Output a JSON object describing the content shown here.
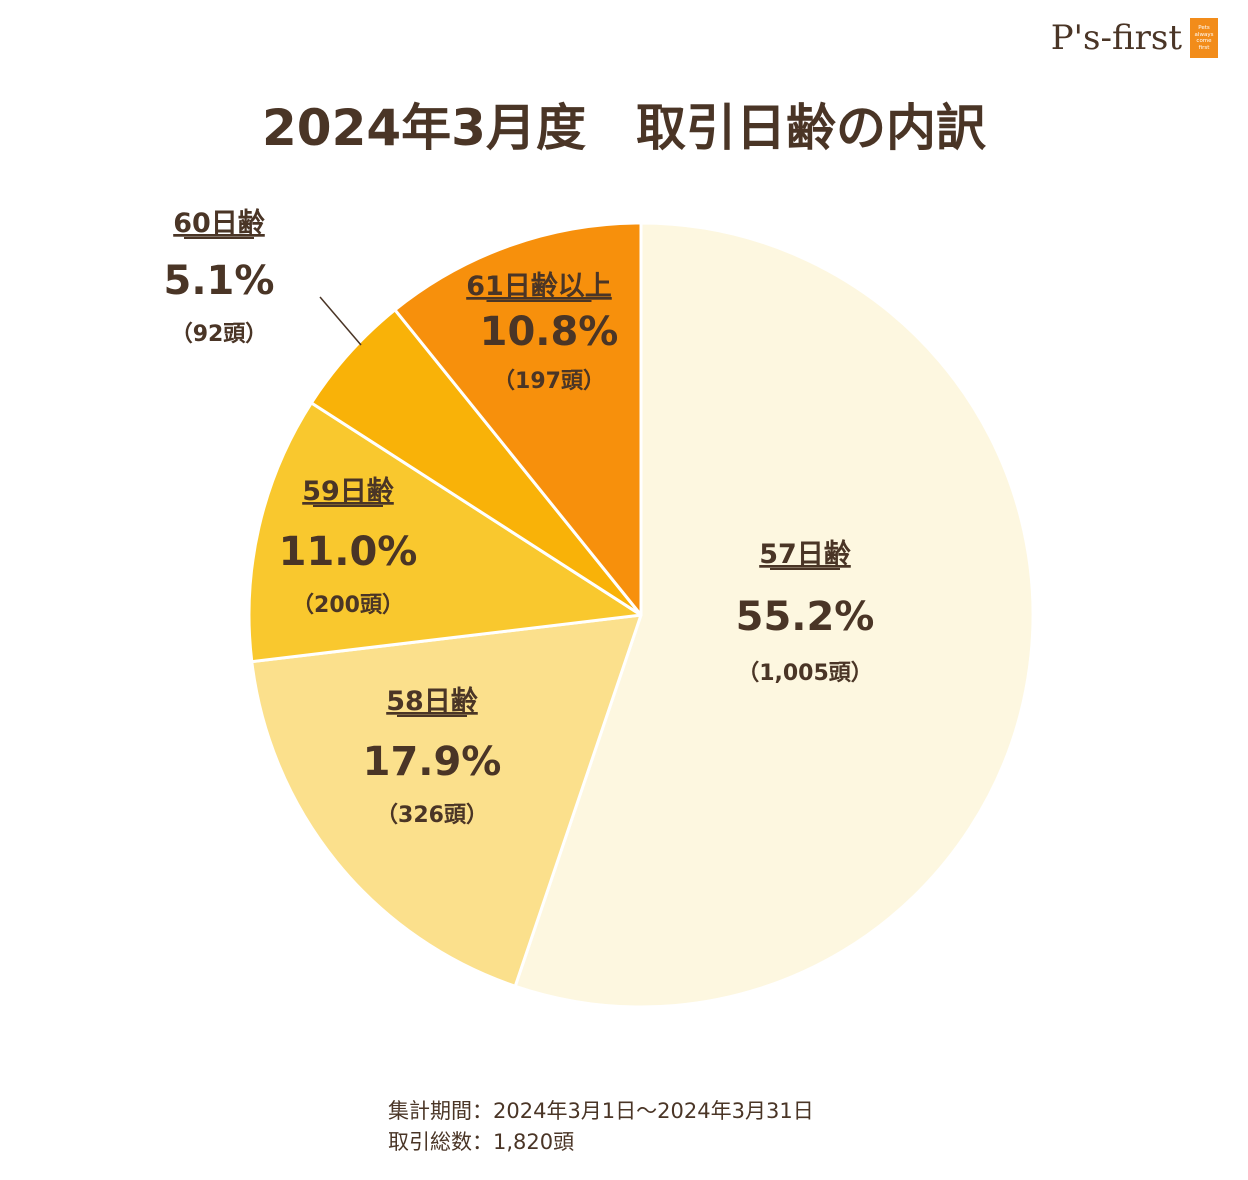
{
  "logo": {
    "text": "P's-first",
    "tagline": [
      "Pets",
      "always",
      "come",
      "first"
    ]
  },
  "title": "2024年3月度　取引日齢の内訳",
  "chart_data": {
    "type": "pie",
    "title": "2024年3月度　取引日齢の内訳",
    "total": 1820,
    "slices": [
      {
        "label": "57日齢",
        "percent": 55.2,
        "percent_label": "55.2%",
        "count": 1005,
        "count_label": "（1,005頭）",
        "color": "#fdf7e0"
      },
      {
        "label": "58日齢",
        "percent": 17.9,
        "percent_label": "17.9%",
        "count": 326,
        "count_label": "（326頭）",
        "color": "#fbe08c"
      },
      {
        "label": "59日齢",
        "percent": 11.0,
        "percent_label": "11.0%",
        "count": 200,
        "count_label": "（200頭）",
        "color": "#f9c82e"
      },
      {
        "label": "60日齢",
        "percent": 5.1,
        "percent_label": "5.1%",
        "count": 92,
        "count_label": "（92頭）",
        "color": "#f9b208"
      },
      {
        "label": "61日齢以上",
        "percent": 10.8,
        "percent_label": "10.8%",
        "count": 197,
        "count_label": "（197頭）",
        "color": "#f7900c"
      }
    ]
  },
  "footer": {
    "period": "集計期間：2024年3月1日～2024年3月31日",
    "total": "取引総数：1,820頭"
  }
}
